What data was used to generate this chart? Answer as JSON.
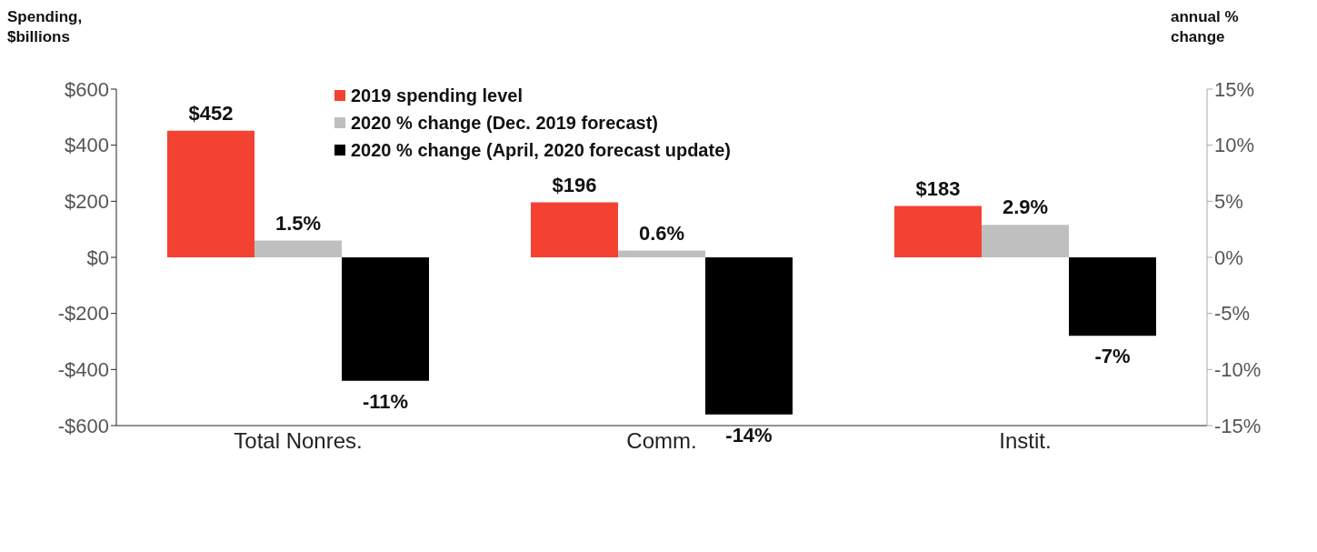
{
  "chart_data": {
    "type": "bar",
    "ylabel": "Spending, $billions",
    "y2label": "annual % change",
    "categories": [
      "Total Nonres.",
      "Comm.",
      "Instit."
    ],
    "series": [
      {
        "name": "2019 spending level",
        "color": "#f44232",
        "values": [
          452,
          196,
          183
        ],
        "value_labels": [
          "$452",
          "$196",
          "$183"
        ]
      },
      {
        "name": "2020 % change (Dec. 2019 forecast)",
        "color": "#bfbfbf",
        "values": [
          1.5,
          0.6,
          2.9
        ],
        "axis": "y2",
        "value_labels": [
          "1.5%",
          "0.6%",
          "2.9%"
        ]
      },
      {
        "name": "2020 % change (April, 2020 forecast update)",
        "color": "#000000",
        "values": [
          -11,
          -14,
          -7
        ],
        "axis": "y2",
        "value_labels": [
          "-11%",
          "-14%",
          "-7%"
        ]
      }
    ],
    "ylim": [
      -600,
      600
    ],
    "yticks": [
      {
        "value": -600,
        "label": "-$600"
      },
      {
        "value": -400,
        "label": "-$400"
      },
      {
        "value": -200,
        "label": "-$200"
      },
      {
        "value": 0,
        "label": "$0"
      },
      {
        "value": 200,
        "label": "$200"
      },
      {
        "value": 400,
        "label": "$400"
      },
      {
        "value": 600,
        "label": "$600"
      }
    ],
    "y2lim": [
      -15,
      15
    ],
    "y2ticks": [
      {
        "value": -15,
        "label": "-15%"
      },
      {
        "value": -10,
        "label": "-10%"
      },
      {
        "value": -5,
        "label": "-5%"
      },
      {
        "value": 0,
        "label": "0%"
      },
      {
        "value": 5,
        "label": "5%"
      },
      {
        "value": 10,
        "label": "10%"
      },
      {
        "value": 15,
        "label": "15%"
      }
    ],
    "legend": "top",
    "grid": false
  }
}
